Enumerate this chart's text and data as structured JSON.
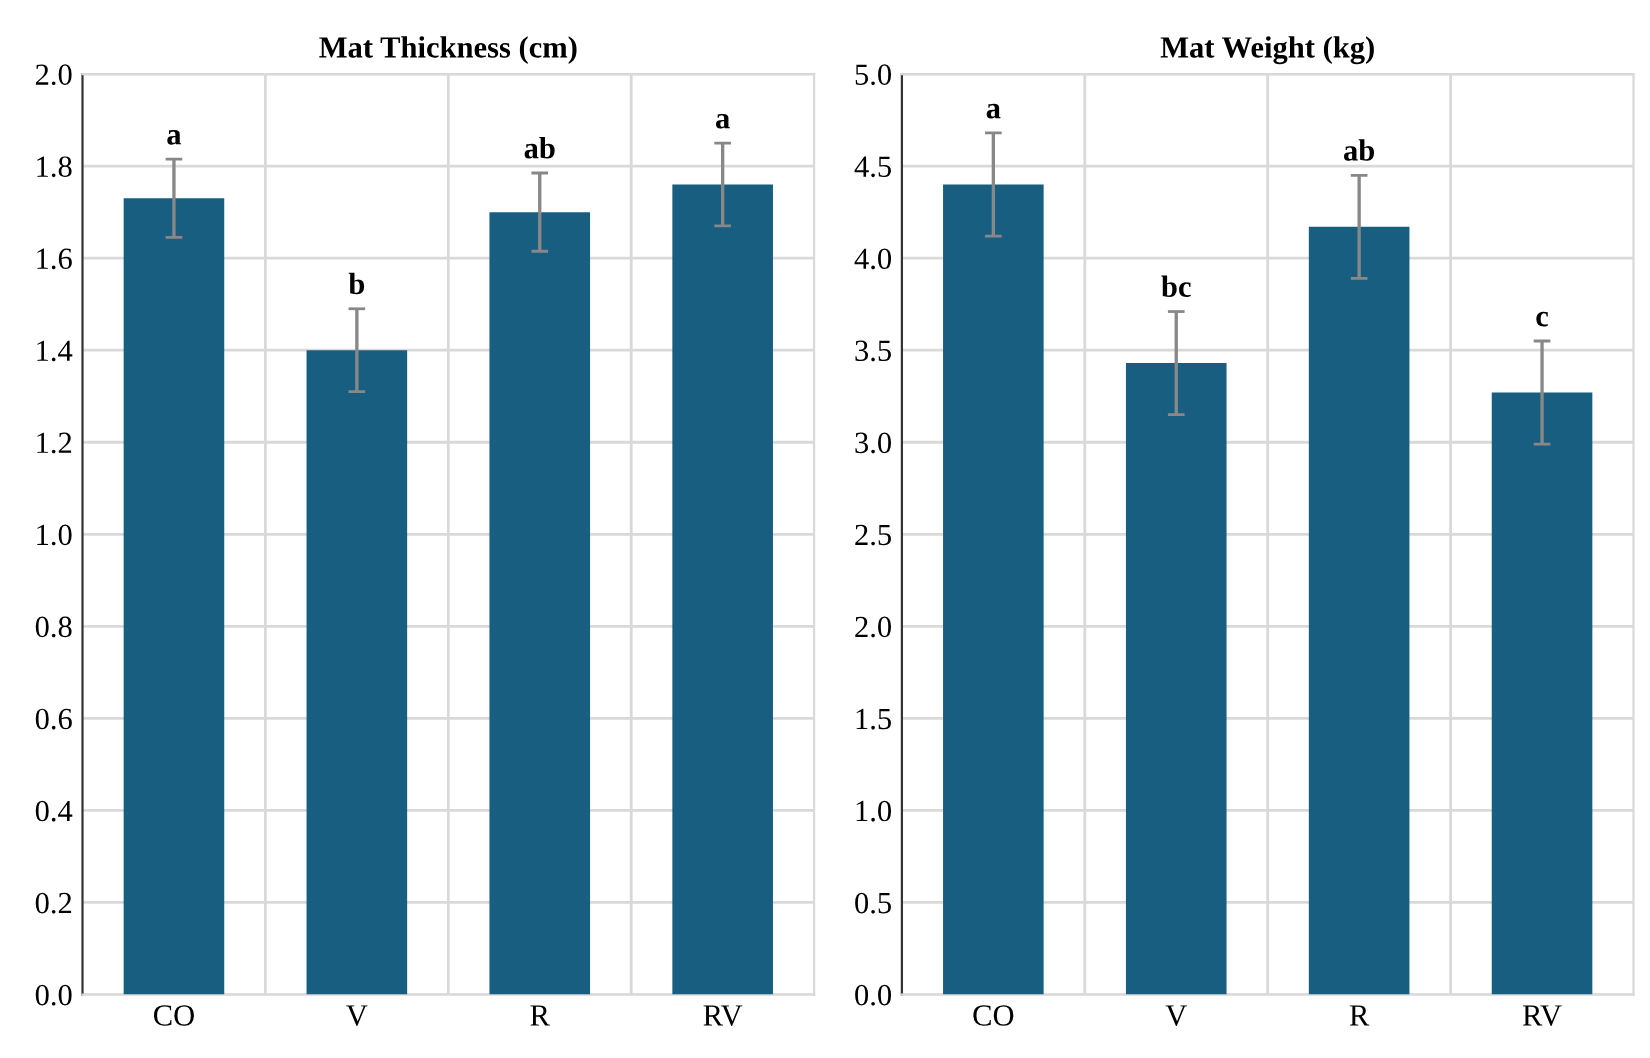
{
  "chart_data": [
    {
      "type": "bar",
      "title": "Mat Thickness (cm)",
      "categories": [
        "CO",
        "V",
        "R",
        "RV"
      ],
      "values": [
        1.73,
        1.4,
        1.7,
        1.76
      ],
      "errors": [
        0.085,
        0.09,
        0.085,
        0.09
      ],
      "color": "#175e80",
      "ylim": [
        0,
        2.0
      ],
      "yticks": [
        {
          "value": 0,
          "label": "0.0"
        },
        0.2,
        0.4,
        0.6,
        0.8,
        {
          "value": 1.0,
          "label": "1.0"
        },
        1.2,
        1.4,
        1.6,
        1.8,
        {
          "value": 2.0,
          "label": "2.0"
        }
      ],
      "grid": true,
      "annotations": [
        {
          "text": "a",
          "x": "CO",
          "y": 1.815
        },
        {
          "text": "b",
          "x": "V",
          "y": 1.49
        },
        {
          "text": "ab",
          "x": "R",
          "y": 1.785
        },
        {
          "text": "a",
          "x": "RV",
          "y": 1.85
        }
      ]
    },
    {
      "type": "bar",
      "title": "Mat Weight (kg)",
      "categories": [
        "CO",
        "V",
        "R",
        "RV"
      ],
      "values": [
        4.4,
        3.43,
        4.17,
        3.27
      ],
      "errors": [
        0.28,
        0.28,
        0.28,
        0.28
      ],
      "color": "#175e80",
      "ylim": [
        0,
        5.0
      ],
      "yticks": [
        {
          "value": 0,
          "label": "0.0"
        },
        0.5,
        {
          "value": 1,
          "label": "1.0"
        },
        1.5,
        {
          "value": 2,
          "label": "2.0"
        },
        2.5,
        {
          "value": 3,
          "label": "3.0"
        },
        3.5,
        {
          "value": 4,
          "label": "4.0"
        },
        4.5,
        {
          "value": 5,
          "label": "5.0"
        }
      ],
      "grid": true,
      "annotations": [
        {
          "text": "a",
          "x": "CO",
          "y": 4.68
        },
        {
          "text": "bc",
          "x": "V",
          "y": 3.71
        },
        {
          "text": "ab",
          "x": "R",
          "y": 4.45
        },
        {
          "text": "c",
          "x": "RV",
          "y": 3.55
        }
      ]
    }
  ]
}
